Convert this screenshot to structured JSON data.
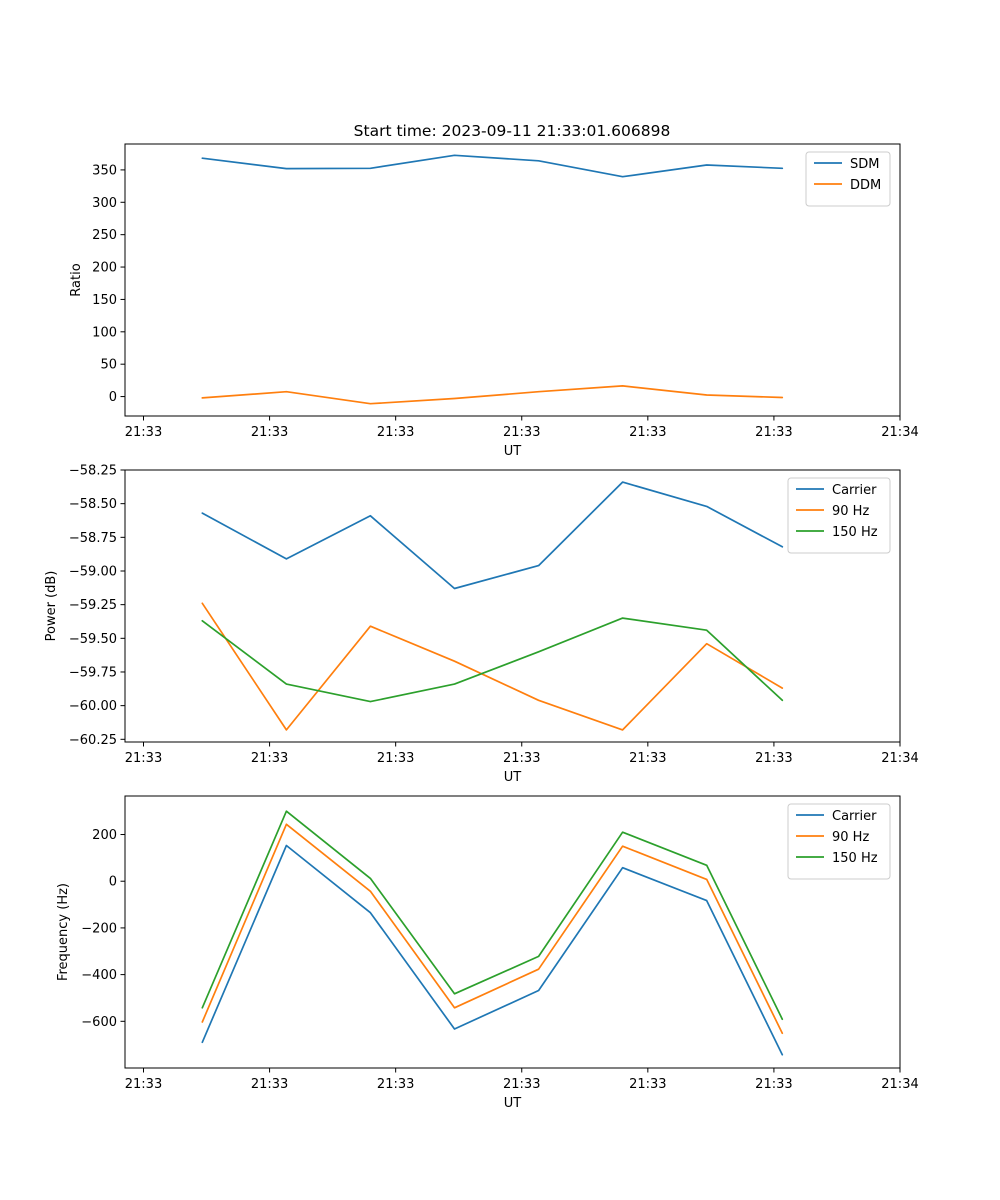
{
  "colors": {
    "blue": "#1f77b4",
    "orange": "#ff7f0e",
    "green": "#2ca02c"
  },
  "chart_data": [
    {
      "type": "line",
      "title": "Start time: 2023-09-11 21:33:01.606898",
      "xlabel": "UT",
      "ylabel": "Ratio",
      "legend_position": "top-right",
      "xlim": [
        -0.22,
        9.0
      ],
      "x_ticks": [
        0,
        1.5,
        3,
        4.5,
        6,
        7.5,
        9
      ],
      "x_tick_labels": [
        "21:33",
        "21:33",
        "21:33",
        "21:33",
        "21:33",
        "21:33",
        "21:34"
      ],
      "x": [
        0.7,
        1.7,
        2.7,
        3.7,
        4.7,
        5.7,
        6.7,
        7.6
      ],
      "ylim": [
        -30,
        390
      ],
      "y_ticks": [
        0,
        50,
        100,
        150,
        200,
        250,
        300,
        350
      ],
      "y_tick_labels": [
        "0",
        "50",
        "100",
        "150",
        "200",
        "250",
        "300",
        "350"
      ],
      "series": [
        {
          "name": "SDM",
          "color": "#1f77b4",
          "values": [
            368,
            352,
            352.5,
            372.5,
            364,
            339.5,
            357.5,
            352.5
          ]
        },
        {
          "name": "DDM",
          "color": "#ff7f0e",
          "values": [
            -2,
            7.5,
            -11,
            -3,
            7.5,
            16.5,
            2.5,
            -1.5
          ]
        }
      ]
    },
    {
      "type": "line",
      "title": "",
      "xlabel": "UT",
      "ylabel": "Power (dB)",
      "legend_position": "top-right",
      "xlim": [
        -0.22,
        9.0
      ],
      "x_ticks": [
        0,
        1.5,
        3,
        4.5,
        6,
        7.5,
        9
      ],
      "x_tick_labels": [
        "21:33",
        "21:33",
        "21:33",
        "21:33",
        "21:33",
        "21:33",
        "21:34"
      ],
      "x": [
        0.7,
        1.7,
        2.7,
        3.7,
        4.7,
        5.7,
        6.7,
        7.6
      ],
      "ylim": [
        -60.27,
        -58.25
      ],
      "y_ticks": [
        -60.25,
        -60.0,
        -59.75,
        -59.5,
        -59.25,
        -59.0,
        -58.75,
        -58.5,
        -58.25
      ],
      "y_tick_labels": [
        "−60.25",
        "−60.00",
        "−59.75",
        "−59.50",
        "−59.25",
        "−59.00",
        "−58.75",
        "−58.50",
        "−58.25"
      ],
      "series": [
        {
          "name": "Carrier",
          "color": "#1f77b4",
          "values": [
            -58.57,
            -58.91,
            -58.59,
            -59.13,
            -58.96,
            -58.34,
            -58.52,
            -58.82
          ]
        },
        {
          "name": "90 Hz",
          "color": "#ff7f0e",
          "values": [
            -59.24,
            -60.18,
            -59.41,
            -59.67,
            -59.96,
            -60.18,
            -59.54,
            -59.87
          ]
        },
        {
          "name": "150 Hz",
          "color": "#2ca02c",
          "values": [
            -59.37,
            -59.84,
            -59.97,
            -59.84,
            -59.6,
            -59.35,
            -59.44,
            -59.96
          ]
        }
      ]
    },
    {
      "type": "line",
      "title": "",
      "xlabel": "UT",
      "ylabel": "Frequency (Hz)",
      "legend_position": "top-right",
      "xlim": [
        -0.22,
        9.0
      ],
      "x_ticks": [
        0,
        1.5,
        3,
        4.5,
        6,
        7.5,
        9
      ],
      "x_tick_labels": [
        "21:33",
        "21:33",
        "21:33",
        "21:33",
        "21:33",
        "21:33",
        "21:34"
      ],
      "x": [
        0.7,
        1.7,
        2.7,
        3.7,
        4.7,
        5.7,
        6.7,
        7.6
      ],
      "ylim": [
        -800,
        365
      ],
      "y_ticks": [
        -600,
        -400,
        -200,
        0,
        200
      ],
      "y_tick_labels": [
        "−600",
        "−400",
        "−200",
        "0",
        "200"
      ],
      "series": [
        {
          "name": "Carrier",
          "color": "#1f77b4",
          "values": [
            -690,
            153,
            -135,
            -633,
            -468,
            58,
            -83,
            -743
          ]
        },
        {
          "name": "90 Hz",
          "color": "#ff7f0e",
          "values": [
            -603,
            244,
            -43,
            -542,
            -377,
            150,
            8,
            -651
          ]
        },
        {
          "name": "150 Hz",
          "color": "#2ca02c",
          "values": [
            -542,
            300,
            12,
            -482,
            -322,
            210,
            68,
            -591
          ]
        }
      ]
    }
  ]
}
